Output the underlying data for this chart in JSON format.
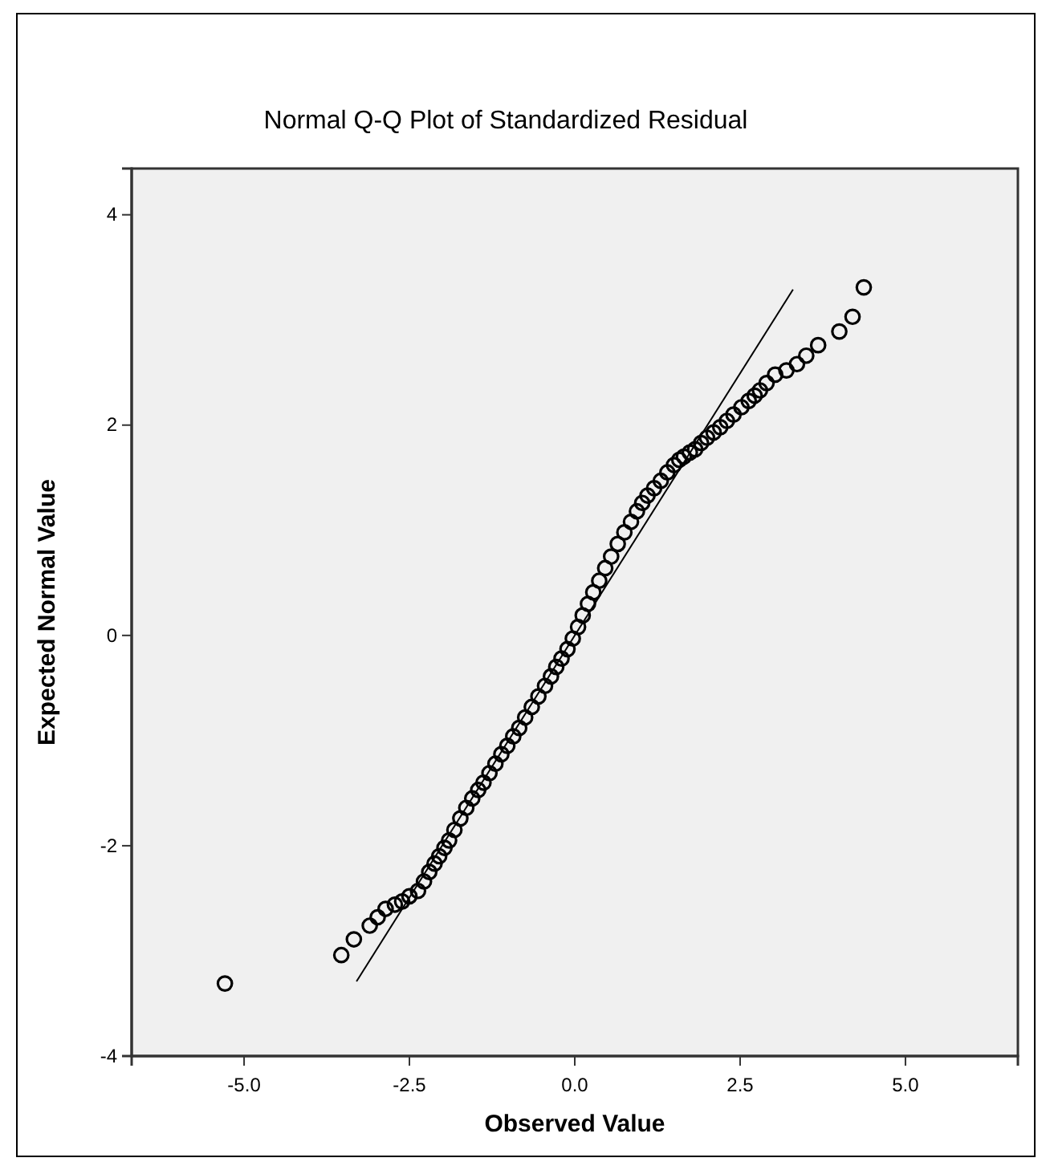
{
  "chart_data": {
    "type": "scatter",
    "title": "Normal Q-Q Plot of Standardized Residual",
    "xlabel": "Observed Value",
    "ylabel": "Expected Normal Value",
    "xlim": [
      -6.7,
      6.7
    ],
    "ylim": [
      -4,
      4.44
    ],
    "xticks": [
      {
        "value": -5,
        "label": "-5.0"
      },
      {
        "value": -2.5,
        "label": "-2.5"
      },
      {
        "value": 0,
        "label": "0.0"
      },
      {
        "value": 2.5,
        "label": "2.5"
      },
      {
        "value": 5,
        "label": "5.0"
      }
    ],
    "yticks": [
      -4,
      -2,
      0,
      2,
      4
    ],
    "grid": false,
    "series": [
      {
        "marker": "circle",
        "color": "#000000",
        "x": [
          -5.29,
          -3.53,
          -3.34,
          -3.1,
          -2.98,
          -2.86,
          -2.72,
          -2.61,
          -2.5,
          -2.37,
          -2.28,
          -2.2,
          -2.12,
          -2.05,
          -1.97,
          -1.9,
          -1.82,
          -1.73,
          -1.64,
          -1.55,
          -1.46,
          -1.38,
          -1.29,
          -1.2,
          -1.11,
          -1.02,
          -0.93,
          -0.84,
          -0.75,
          -0.65,
          -0.55,
          -0.45,
          -0.36,
          -0.28,
          -0.2,
          -0.11,
          -0.03,
          0.05,
          0.12,
          0.2,
          0.28,
          0.37,
          0.46,
          0.55,
          0.65,
          0.75,
          0.85,
          0.94,
          1.02,
          1.1,
          1.2,
          1.3,
          1.4,
          1.5,
          1.58,
          1.65,
          1.74,
          1.82,
          1.91,
          2.0,
          2.1,
          2.2,
          2.3,
          2.4,
          2.52,
          2.63,
          2.72,
          2.8,
          2.9,
          3.03,
          3.2,
          3.36,
          3.5,
          3.68,
          4.0,
          4.2,
          4.37
        ],
        "values": [
          -3.31,
          -3.04,
          -2.89,
          -2.76,
          -2.68,
          -2.6,
          -2.56,
          -2.53,
          -2.48,
          -2.43,
          -2.34,
          -2.25,
          -2.17,
          -2.1,
          -2.02,
          -1.95,
          -1.85,
          -1.74,
          -1.64,
          -1.55,
          -1.47,
          -1.4,
          -1.31,
          -1.22,
          -1.13,
          -1.05,
          -0.96,
          -0.88,
          -0.78,
          -0.68,
          -0.58,
          -0.48,
          -0.39,
          -0.3,
          -0.22,
          -0.13,
          -0.03,
          0.08,
          0.19,
          0.3,
          0.41,
          0.52,
          0.64,
          0.75,
          0.87,
          0.98,
          1.08,
          1.18,
          1.26,
          1.33,
          1.4,
          1.47,
          1.55,
          1.62,
          1.67,
          1.7,
          1.74,
          1.77,
          1.83,
          1.88,
          1.93,
          1.98,
          2.04,
          2.1,
          2.17,
          2.23,
          2.28,
          2.33,
          2.4,
          2.48,
          2.52,
          2.58,
          2.66,
          2.76,
          2.89,
          3.03,
          3.31
        ]
      },
      {
        "type": "line",
        "color": "#000000",
        "x": [
          -3.3,
          3.3
        ],
        "values": [
          -3.29,
          3.29
        ]
      }
    ]
  }
}
